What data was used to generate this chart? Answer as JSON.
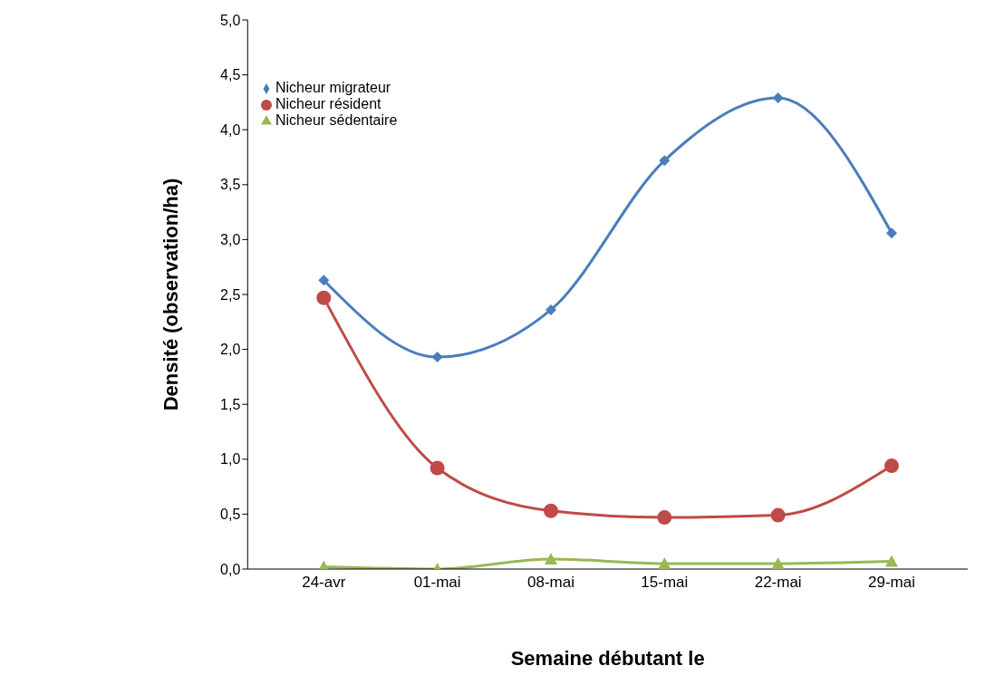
{
  "chart_data": {
    "type": "line",
    "xlabel": "Semaine débutant le",
    "ylabel": "Densité (observation/ha)",
    "categories": [
      "24-avr",
      "01-mai",
      "08-mai",
      "15-mai",
      "22-mai",
      "29-mai"
    ],
    "series": [
      {
        "name": "Nicheur migrateur",
        "color": "#4a7ebb",
        "marker": "diamond",
        "values": [
          2.63,
          1.93,
          2.36,
          3.72,
          4.29,
          3.06
        ]
      },
      {
        "name": "Nicheur résident",
        "color": "#be4b48",
        "marker": "circle",
        "values": [
          2.47,
          0.92,
          0.53,
          0.47,
          0.49,
          0.94
        ]
      },
      {
        "name": "Nicheur sédentaire",
        "color": "#98b954",
        "marker": "triangle",
        "values": [
          0.02,
          0,
          0.09,
          0.05,
          0.05,
          0.07
        ]
      }
    ],
    "ylim": [
      0,
      5
    ],
    "yticks": [
      {
        "value": 0,
        "label": "0,0"
      },
      {
        "value": 0.5,
        "label": "0,5"
      },
      {
        "value": 1,
        "label": "1,0"
      },
      {
        "value": 1.5,
        "label": "1,5"
      },
      {
        "value": 2,
        "label": "2,0"
      },
      {
        "value": 2.5,
        "label": "2,5"
      },
      {
        "value": 3,
        "label": "3,0"
      },
      {
        "value": 3.5,
        "label": "3,5"
      },
      {
        "value": 4,
        "label": "4,0"
      },
      {
        "value": 4.5,
        "label": "4,5"
      },
      {
        "value": 5,
        "label": "5,0"
      }
    ],
    "grid": false,
    "legend": "top left",
    "line_style": "solid"
  }
}
